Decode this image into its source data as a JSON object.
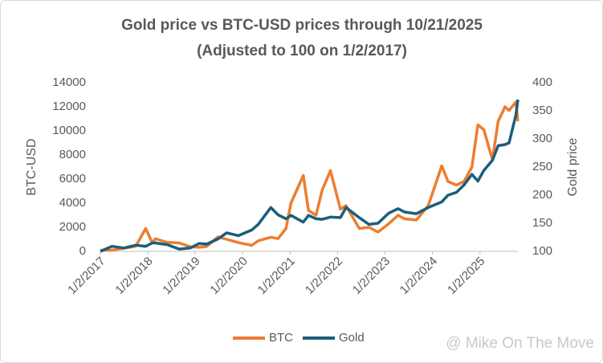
{
  "chart_data": {
    "type": "line",
    "title": "Gold price vs BTC-USD prices through 10/21/2025",
    "subtitle": "(Adjusted to 100 on 1/2/2017)",
    "y_label": "BTC-USD",
    "y2_label": "Gold price",
    "watermark": "@ Mike On The Move",
    "x": [
      "1/2/2017",
      "4/1/2017",
      "7/1/2017",
      "10/1/2017",
      "12/17/2017",
      "2/6/2018",
      "3/1/2018",
      "6/1/2018",
      "9/1/2018",
      "11/25/2018",
      "2/1/2019",
      "4/1/2019",
      "6/26/2019",
      "9/1/2019",
      "12/1/2019",
      "3/12/2020",
      "5/1/2020",
      "8/6/2020",
      "10/1/2020",
      "12/1/2020",
      "1/8/2021",
      "4/13/2021",
      "5/23/2021",
      "7/20/2021",
      "9/6/2021",
      "11/8/2021",
      "1/24/2022",
      "3/8/2022",
      "6/18/2022",
      "9/1/2022",
      "11/9/2022",
      "1/31/2023",
      "4/13/2023",
      "6/1/2023",
      "9/1/2023",
      "12/1/2023",
      "3/14/2024",
      "5/1/2024",
      "7/5/2024",
      "9/1/2024",
      "11/1/2024",
      "12/17/2024",
      "2/1/2025",
      "4/8/2025",
      "5/22/2025",
      "7/14/2025",
      "8/14/2025",
      "10/6/2025",
      "10/21/2025"
    ],
    "series": [
      {
        "name": "BTC",
        "color": "#ed7d31",
        "axis": "y",
        "values": [
          100,
          110,
          250,
          430,
          1900,
          700,
          1050,
          750,
          700,
          380,
          340,
          410,
          1200,
          1000,
          730,
          500,
          880,
          1170,
          1060,
          1900,
          4000,
          6300,
          3400,
          3000,
          5100,
          6700,
          3500,
          3800,
          1900,
          2000,
          1600,
          2300,
          3000,
          2700,
          2600,
          3800,
          7100,
          5800,
          5500,
          5800,
          7000,
          10500,
          10100,
          7600,
          10800,
          12000,
          11700,
          12400,
          10800
        ]
      },
      {
        "name": "Gold",
        "color": "#1b5e7b",
        "axis": "y2",
        "values": [
          100,
          109,
          106,
          111,
          109,
          115,
          115,
          112,
          104,
          106,
          114,
          113,
          122,
          133,
          128,
          138,
          148,
          178,
          165,
          158,
          164,
          152,
          164,
          158,
          157,
          161,
          160,
          178,
          160,
          148,
          150,
          168,
          176,
          170,
          167,
          178,
          188,
          200,
          205,
          218,
          237,
          225,
          244,
          262,
          288,
          290,
          293,
          343,
          370
        ]
      }
    ],
    "xlim": [
      "1/2/2017",
      "10/21/2025"
    ],
    "xticks": [
      "1/2/2017",
      "1/2/2018",
      "1/2/2019",
      "1/2/2020",
      "1/2/2021",
      "1/2/2022",
      "1/2/2023",
      "1/2/2024",
      "1/2/2025"
    ],
    "ylim": [
      0,
      14000
    ],
    "yticks": [
      0,
      2000,
      4000,
      6000,
      8000,
      10000,
      12000,
      14000
    ],
    "y2lim": [
      100,
      400
    ],
    "y2ticks": [
      100,
      150,
      200,
      250,
      300,
      350,
      400
    ],
    "grid": false,
    "legend": "bottom"
  }
}
